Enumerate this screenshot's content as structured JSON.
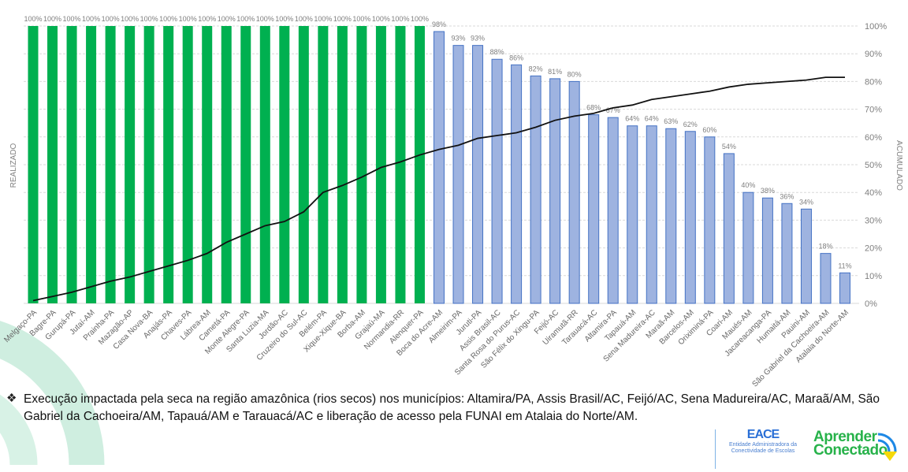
{
  "chart_data": {
    "type": "bar",
    "categories": [
      "Melgaço-PA",
      "Bagre-PA",
      "Gurupá-PA",
      "Jutaí-AM",
      "Prainha-PA",
      "Mazagão-AP",
      "Casa Nova-BA",
      "Anajás-PA",
      "Chaves-PA",
      "Lábrea-AM",
      "Cametá-PA",
      "Monte Alegre-PA",
      "Santa Luzia-MA",
      "Jordão-AC",
      "Cruzeiro do Sul-AC",
      "Belém-PA",
      "Xique-Xique-BA",
      "Borba-AM",
      "Grajaú-MA",
      "Normandia-RR",
      "Alenquer-PA",
      "Boca do Acre-AM",
      "Almeirim-PA",
      "Juruti-PA",
      "Assis Brasil-AC",
      "Santa Rosa do Purus-AC",
      "São Félix do Xingu-PA",
      "Feijó-AC",
      "Uiramutã-RR",
      "Tarauacá-AC",
      "Altamira-PA",
      "Tapauá-AM",
      "Sena Madureira-AC",
      "Maraã-AM",
      "Barcelos-AM",
      "Oriximiná-PA",
      "Coari-AM",
      "Maués-AM",
      "Jacareacanga-PA",
      "Humaitá-AM",
      "Pauini-AM",
      "São Gabriel da Cachoeira-AM",
      "Atalaia do Norte-AM"
    ],
    "series": [
      {
        "type": "bar",
        "values": [
          100,
          100,
          100,
          100,
          100,
          100,
          100,
          100,
          100,
          100,
          100,
          100,
          100,
          100,
          100,
          100,
          100,
          100,
          100,
          100,
          100,
          98,
          93,
          93,
          88,
          86,
          82,
          81,
          80,
          68,
          67,
          64,
          64,
          63,
          62,
          60,
          54,
          40,
          38,
          36,
          34,
          18,
          11
        ]
      },
      {
        "type": "line",
        "values": [
          1,
          2.5,
          4,
          6,
          8,
          9.5,
          11.5,
          13.5,
          15.5,
          18,
          22,
          25,
          28,
          29.5,
          33,
          40,
          42.5,
          45.5,
          49,
          51,
          53.5,
          55.5,
          57,
          59.5,
          60.5,
          61.5,
          63.5,
          66,
          67.5,
          68.5,
          70.5,
          71.5,
          73.5,
          74.5,
          75.5,
          76.5,
          78,
          79,
          79.5,
          80,
          80.5,
          81.5,
          81.5
        ]
      }
    ],
    "data_labels": [
      "100%",
      "100%",
      "100%",
      "100%",
      "100%",
      "100%",
      "100%",
      "100%",
      "100%",
      "100%",
      "100%",
      "100%",
      "100%",
      "100%",
      "100%",
      "100%",
      "100%",
      "100%",
      "100%",
      "100%",
      "100%",
      "98%",
      "93%",
      "93%",
      "88%",
      "86%",
      "82%",
      "81%",
      "80%",
      "68%",
      "67%",
      "64%",
      "64%",
      "63%",
      "62%",
      "60%",
      "54%",
      "40%",
      "38%",
      "36%",
      "34%",
      "18%",
      "11%"
    ],
    "ylabel": "REALIZADO",
    "y2label": "ACUMULADO",
    "y2_ticks": [
      "0%",
      "10%",
      "20%",
      "30%",
      "40%",
      "50%",
      "60%",
      "70%",
      "80%",
      "90%",
      "100%"
    ],
    "ylim": [
      0,
      100
    ],
    "grid": true,
    "colors": {
      "full": "#00b050",
      "partial": "#9eb3e0",
      "partial_border": "#4472c4",
      "line": "#111111",
      "grid": "#d9d9d9",
      "label": "#7f7f7f"
    }
  },
  "footer": {
    "bullet": "❖",
    "note": "Execução impactada pela seca na região amazônica (rios secos) nos municípios: Altamira/PA, Assis Brasil/AC, Feijó/AC, Sena Madureira/AC, Maraã/AM,  São Gabriel da Cachoeira/AM, Tapauá/AM e Tarauacá/AC e liberação de acesso pela FUNAI em Atalaia do Norte/AM."
  },
  "logos": {
    "eace": "EACE",
    "eace_sub": "Entidade Administradora da Conectividade de Escolas",
    "aprender": "Aprender",
    "conectado": "Conectado"
  }
}
